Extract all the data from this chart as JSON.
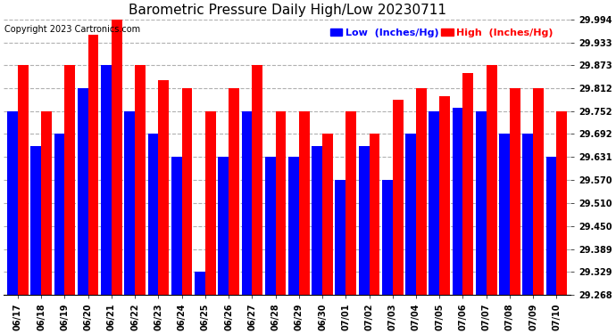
{
  "title": "Barometric Pressure Daily High/Low 20230711",
  "copyright": "Copyright 2023 Cartronics.com",
  "legend_low": "Low  (Inches/Hg)",
  "legend_high": "High  (Inches/Hg)",
  "categories": [
    "06/17",
    "06/18",
    "06/19",
    "06/20",
    "06/21",
    "06/22",
    "06/23",
    "06/24",
    "06/25",
    "06/26",
    "06/27",
    "06/28",
    "06/29",
    "06/30",
    "07/01",
    "07/02",
    "07/03",
    "07/04",
    "07/05",
    "07/06",
    "07/07",
    "07/08",
    "07/09",
    "07/10"
  ],
  "high_values": [
    29.873,
    29.752,
    29.873,
    29.954,
    29.994,
    29.873,
    29.833,
    29.812,
    29.752,
    29.812,
    29.873,
    29.752,
    29.752,
    29.692,
    29.752,
    29.692,
    29.782,
    29.812,
    29.792,
    29.852,
    29.873,
    29.812,
    29.812,
    29.752
  ],
  "low_values": [
    29.752,
    29.661,
    29.692,
    29.812,
    29.873,
    29.752,
    29.692,
    29.631,
    29.329,
    29.631,
    29.752,
    29.631,
    29.631,
    29.661,
    29.57,
    29.661,
    29.57,
    29.692,
    29.752,
    29.762,
    29.752,
    29.692,
    29.692,
    29.631
  ],
  "bar_color_high": "#ff0000",
  "bar_color_low": "#0000ff",
  "background_color": "#ffffff",
  "plot_bg_color": "#ffffff",
  "grid_color": "#b0b0b0",
  "title_color": "#000000",
  "copyright_color": "#000000",
  "legend_low_color": "#0000ff",
  "legend_high_color": "#ff0000",
  "yticks": [
    29.268,
    29.329,
    29.389,
    29.45,
    29.51,
    29.57,
    29.631,
    29.692,
    29.752,
    29.812,
    29.873,
    29.933,
    29.994
  ],
  "ymin": 29.268,
  "ymax": 29.994,
  "title_fontsize": 11,
  "axis_fontsize": 7,
  "copyright_fontsize": 7,
  "legend_fontsize": 8
}
